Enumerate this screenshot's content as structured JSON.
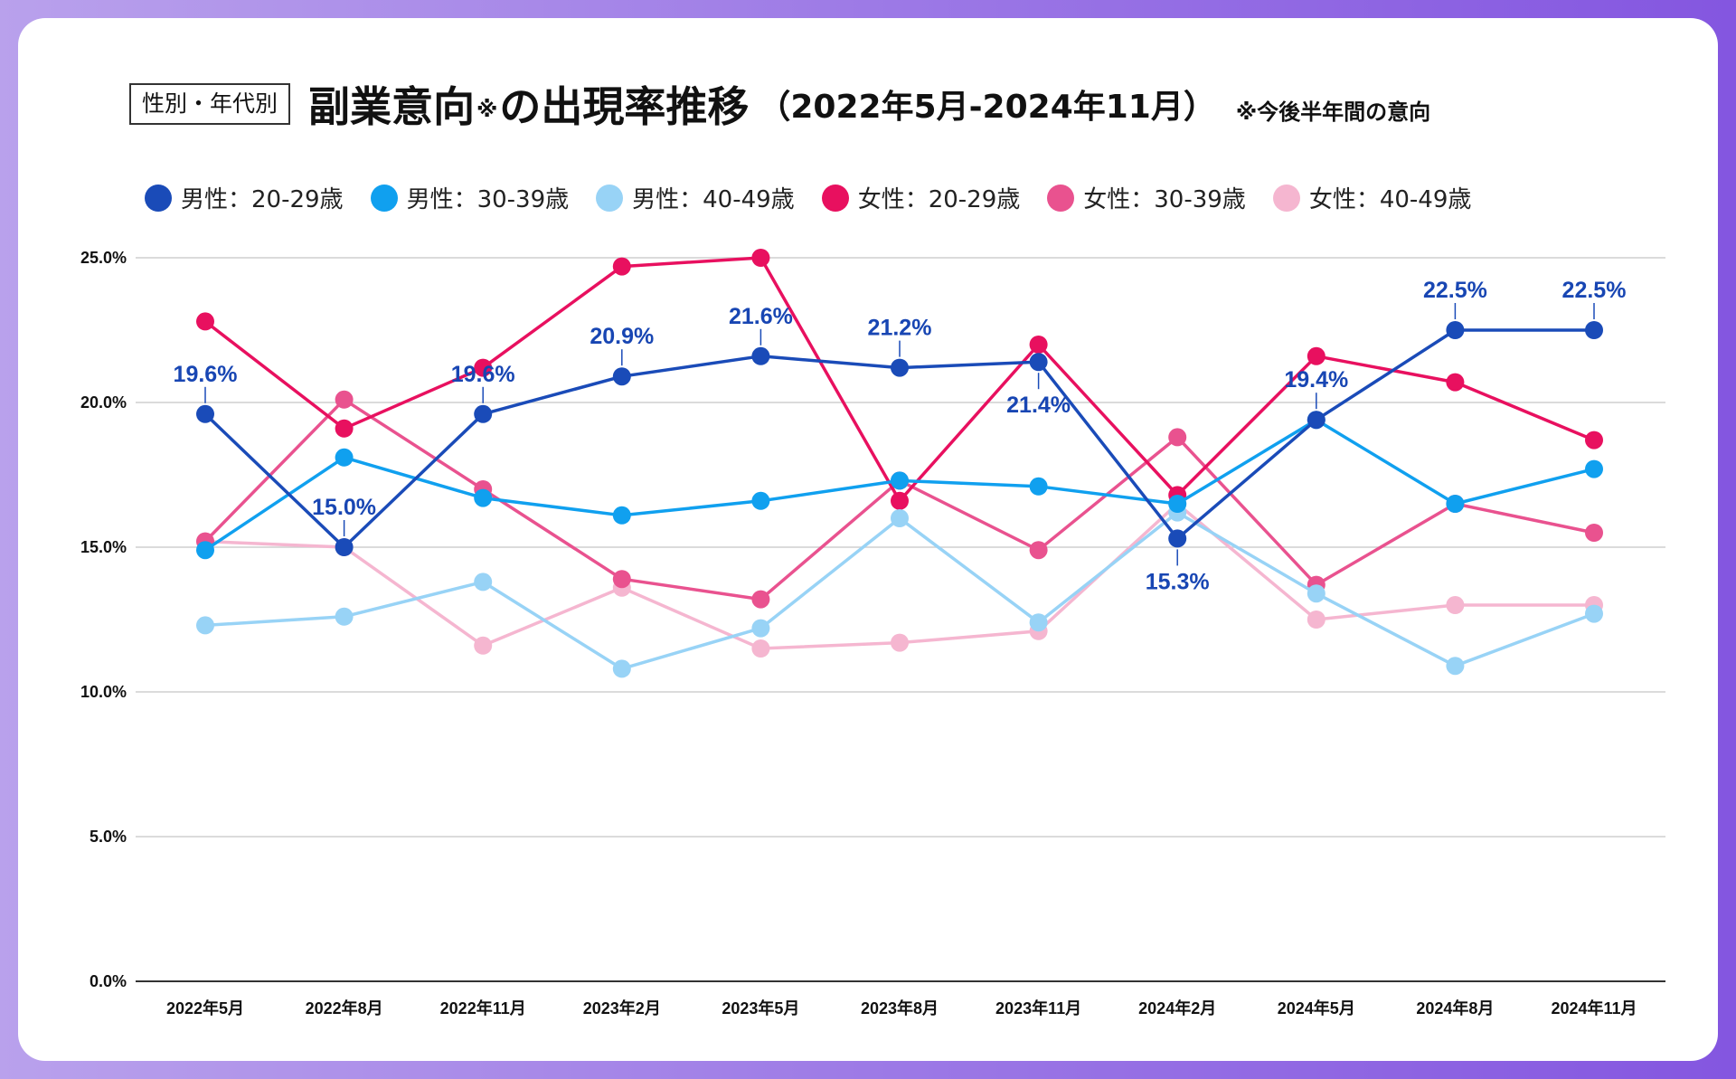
{
  "header": {
    "badge": "性別・年代別",
    "title": "副業意向",
    "title_mark": "※",
    "title_rest": "の出現率推移",
    "period": "（2022年5月-2024年11月）",
    "note": "※今後半年間の意向"
  },
  "chart_data": {
    "type": "line",
    "title": "副業意向※の出現率推移（2022年5月-2024年11月）",
    "categories": [
      "2022年5月",
      "2022年8月",
      "2022年11月",
      "2023年2月",
      "2023年5月",
      "2023年8月",
      "2023年11月",
      "2024年2月",
      "2024年5月",
      "2024年8月",
      "2024年11月"
    ],
    "ylim": [
      0,
      25
    ],
    "yticks": [
      0,
      5,
      10,
      15,
      20,
      25
    ],
    "ytick_labels": [
      "0.0%",
      "5.0%",
      "10.0%",
      "15.0%",
      "20.0%",
      "25.0%"
    ],
    "grid": true,
    "legend_position": "top",
    "series": [
      {
        "name": "男性：20-29歳",
        "color": "#1a4bb8",
        "values": [
          19.6,
          15.0,
          19.6,
          20.9,
          21.6,
          21.2,
          21.4,
          15.3,
          19.4,
          22.5,
          22.5
        ],
        "labels": [
          "19.6%",
          "15.0%",
          "19.6%",
          "20.9%",
          "21.6%",
          "21.2%",
          "21.4%",
          "15.3%",
          "19.4%",
          "22.5%",
          "22.5%"
        ],
        "label_side": [
          "up",
          "up",
          "up",
          "up",
          "up",
          "up",
          "down",
          "down",
          "up",
          "up",
          "up"
        ]
      },
      {
        "name": "男性：30-39歳",
        "color": "#10a0ef",
        "values": [
          14.9,
          18.1,
          16.7,
          16.1,
          16.6,
          17.3,
          17.1,
          16.5,
          19.4,
          16.5,
          17.7
        ]
      },
      {
        "name": "男性：40-49歳",
        "color": "#98d3f6",
        "values": [
          12.3,
          12.6,
          13.8,
          10.8,
          12.2,
          16.0,
          12.4,
          16.2,
          13.4,
          10.9,
          12.7
        ]
      },
      {
        "name": "女性：20-29歳",
        "color": "#e8105f",
        "values": [
          22.8,
          19.1,
          21.2,
          24.7,
          25.0,
          16.6,
          22.0,
          16.8,
          21.6,
          20.7,
          18.7
        ]
      },
      {
        "name": "女性：30-39歳",
        "color": "#e9528f",
        "values": [
          15.2,
          20.1,
          17.0,
          13.9,
          13.2,
          17.3,
          14.9,
          18.8,
          13.7,
          16.5,
          15.5
        ]
      },
      {
        "name": "女性：40-49歳",
        "color": "#f5b6d0",
        "values": [
          15.2,
          15.0,
          11.6,
          13.6,
          11.5,
          11.7,
          12.1,
          16.5,
          12.5,
          13.0,
          13.0
        ]
      }
    ]
  }
}
